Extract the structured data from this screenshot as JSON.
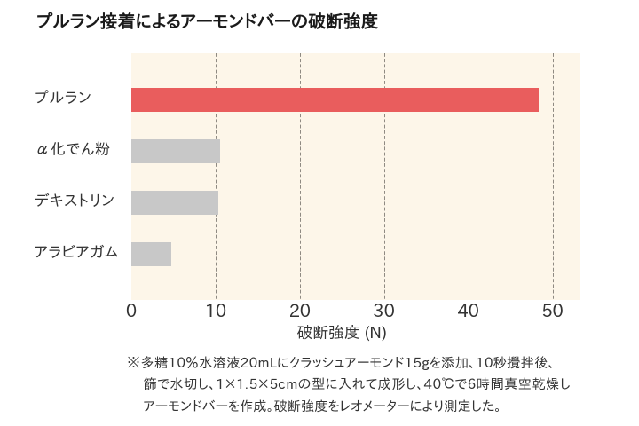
{
  "title": "プルラン接着によるアーモンドバーの破断強度",
  "chart_data": {
    "type": "bar",
    "orientation": "horizontal",
    "title": "プルラン接着によるアーモンドバーの破断強度",
    "categories": [
      "プルラン",
      "α化でん粉",
      "デキストリン",
      "アラビアガム"
    ],
    "values": [
      48.4,
      10.5,
      10.3,
      4.7
    ],
    "unit": "N",
    "xlabel": "破断強度 (N)",
    "xlim": [
      0,
      53
    ],
    "xticks": [
      0,
      10,
      20,
      30,
      40,
      50
    ],
    "grid": {
      "vertical": true,
      "style": "dashed",
      "color": "#8f8a82"
    },
    "legend": null,
    "highlight_category": "プルラン",
    "colors": {
      "highlight_bar": "#e95d5d",
      "default_bar": "#c8c8c8",
      "plot_background": "#fdf6e9",
      "page_background": "#ffffff",
      "title_text": "#1a1a1a",
      "label_text": "#333333"
    }
  },
  "footnote": {
    "marker": "※",
    "lines": [
      "※多糖10％水溶液20mLにクラッシュアーモンド15gを添加、10秒攪拌後、",
      "篩で水切し、1×1.5×5cmの型に入れて成形し、40℃で6時間真空乾燥し",
      "アーモンドバーを作成。破断強度をレオメーターにより測定した。"
    ]
  }
}
